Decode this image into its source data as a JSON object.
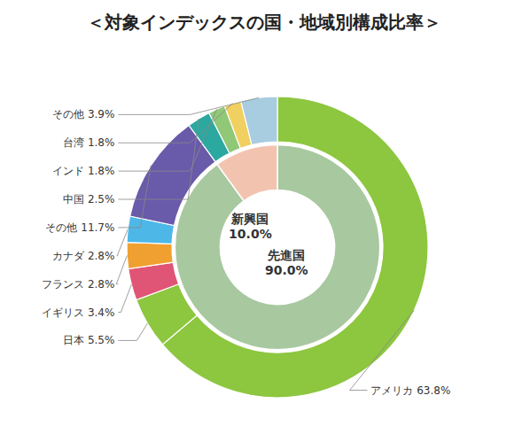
{
  "chart_data": {
    "type": "pie",
    "title": "＜対象インデックスの国・地域別構成比率＞",
    "series": [
      {
        "categories": [
          "アメリカ 63.8%",
          "日本 5.5%",
          "イギリス 3.4%",
          "フランス 2.8%",
          "カナダ 2.8%",
          "その他 11.7%",
          "中国 2.5%",
          "インド 1.8%",
          "台湾 1.8%",
          "その他 3.9%"
        ],
        "values": [
          63.8,
          5.5,
          3.4,
          2.8,
          2.8,
          11.7,
          2.5,
          1.8,
          1.8,
          3.9
        ],
        "colors": [
          "#8dc63f",
          "#8dc63f",
          "#e05575",
          "#f0a030",
          "#4db8e8",
          "#6a5aaa",
          "#2ba8a0",
          "#90c878",
          "#f0d060",
          "#a8cce0"
        ]
      },
      {
        "categories": [
          "先進国\n90.0%",
          "新興国\n10.0%"
        ],
        "values": [
          90.0,
          10.0
        ],
        "colors": [
          "#a8c8a0",
          "#f2c4b0"
        ]
      }
    ]
  }
}
